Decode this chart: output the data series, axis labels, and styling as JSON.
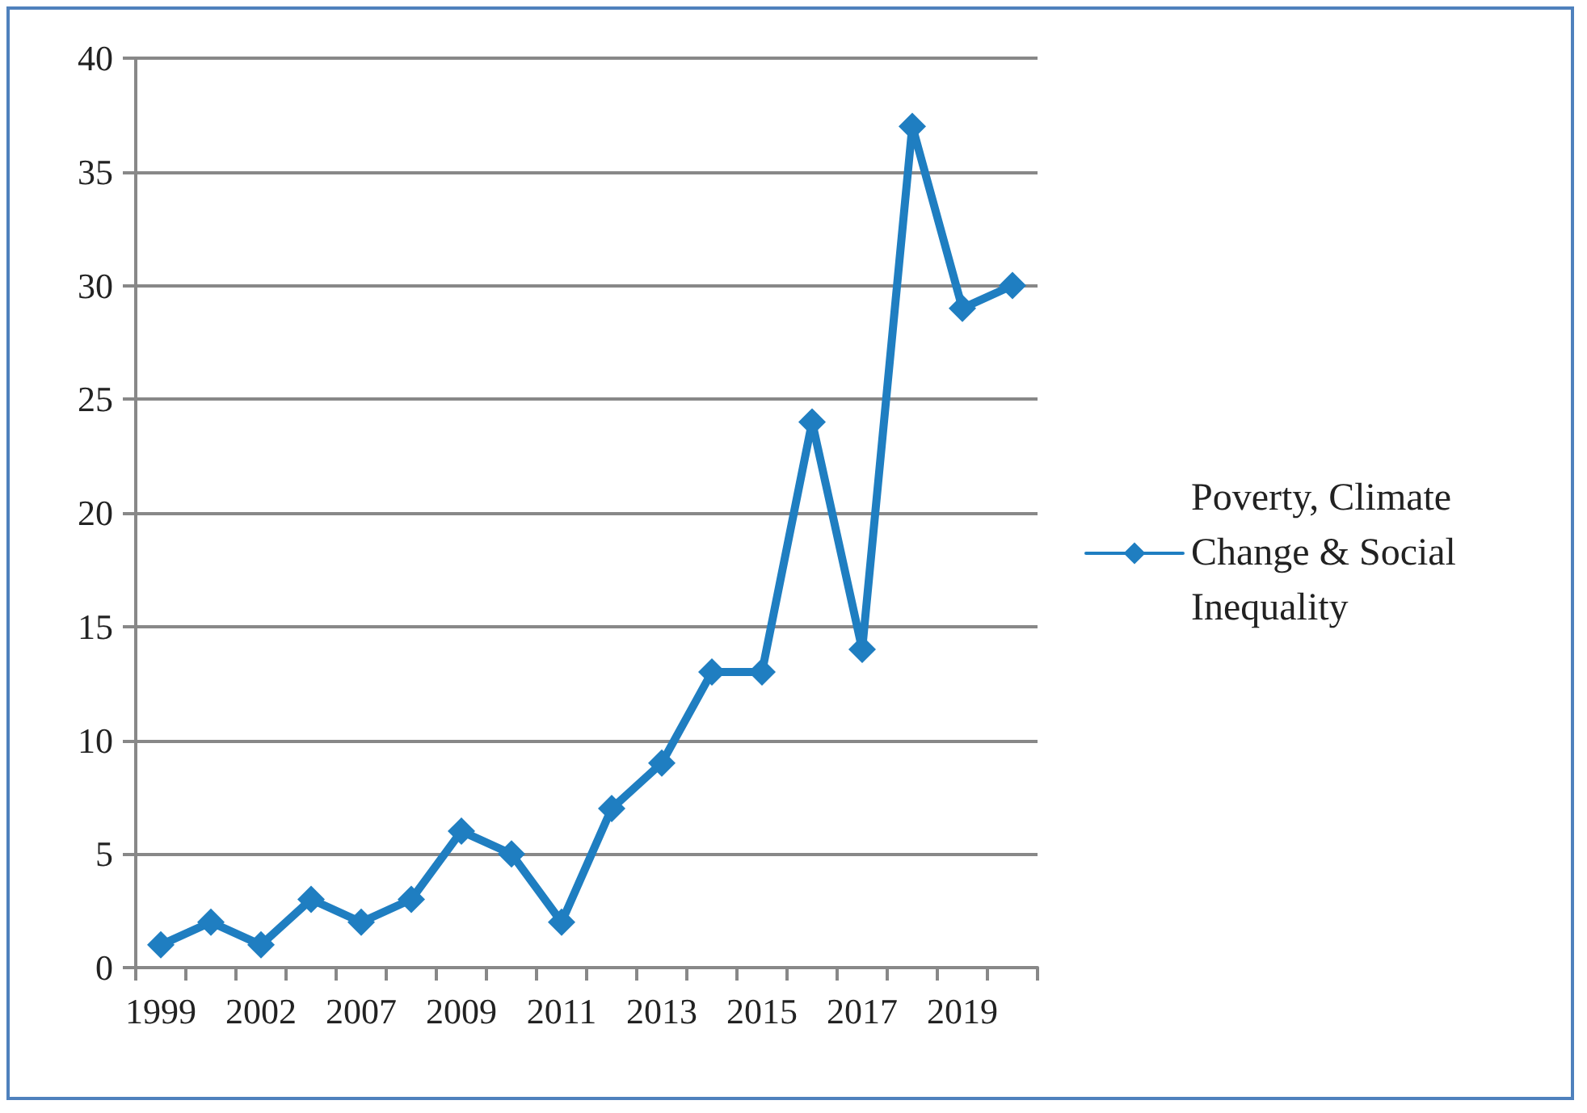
{
  "chart_data": {
    "type": "line",
    "categories": [
      "1999",
      null,
      "2002",
      null,
      "2007",
      null,
      "2009",
      null,
      "2011",
      null,
      "2013",
      null,
      "2015",
      null,
      "2017",
      null,
      "2019",
      null
    ],
    "series": [
      {
        "name": "Poverty, Climate Change & Social Inequality",
        "color": "#1f7ec1",
        "values": [
          1,
          2,
          1,
          3,
          2,
          3,
          6,
          5,
          2,
          7,
          9,
          13,
          13,
          24,
          14,
          37,
          29,
          30
        ]
      }
    ],
    "ylim": [
      0,
      40
    ],
    "yticks": [
      0,
      5,
      10,
      15,
      20,
      25,
      30,
      35,
      40
    ],
    "grid": "y",
    "legend": "right",
    "marker": "diamond",
    "line_style": "solid"
  }
}
